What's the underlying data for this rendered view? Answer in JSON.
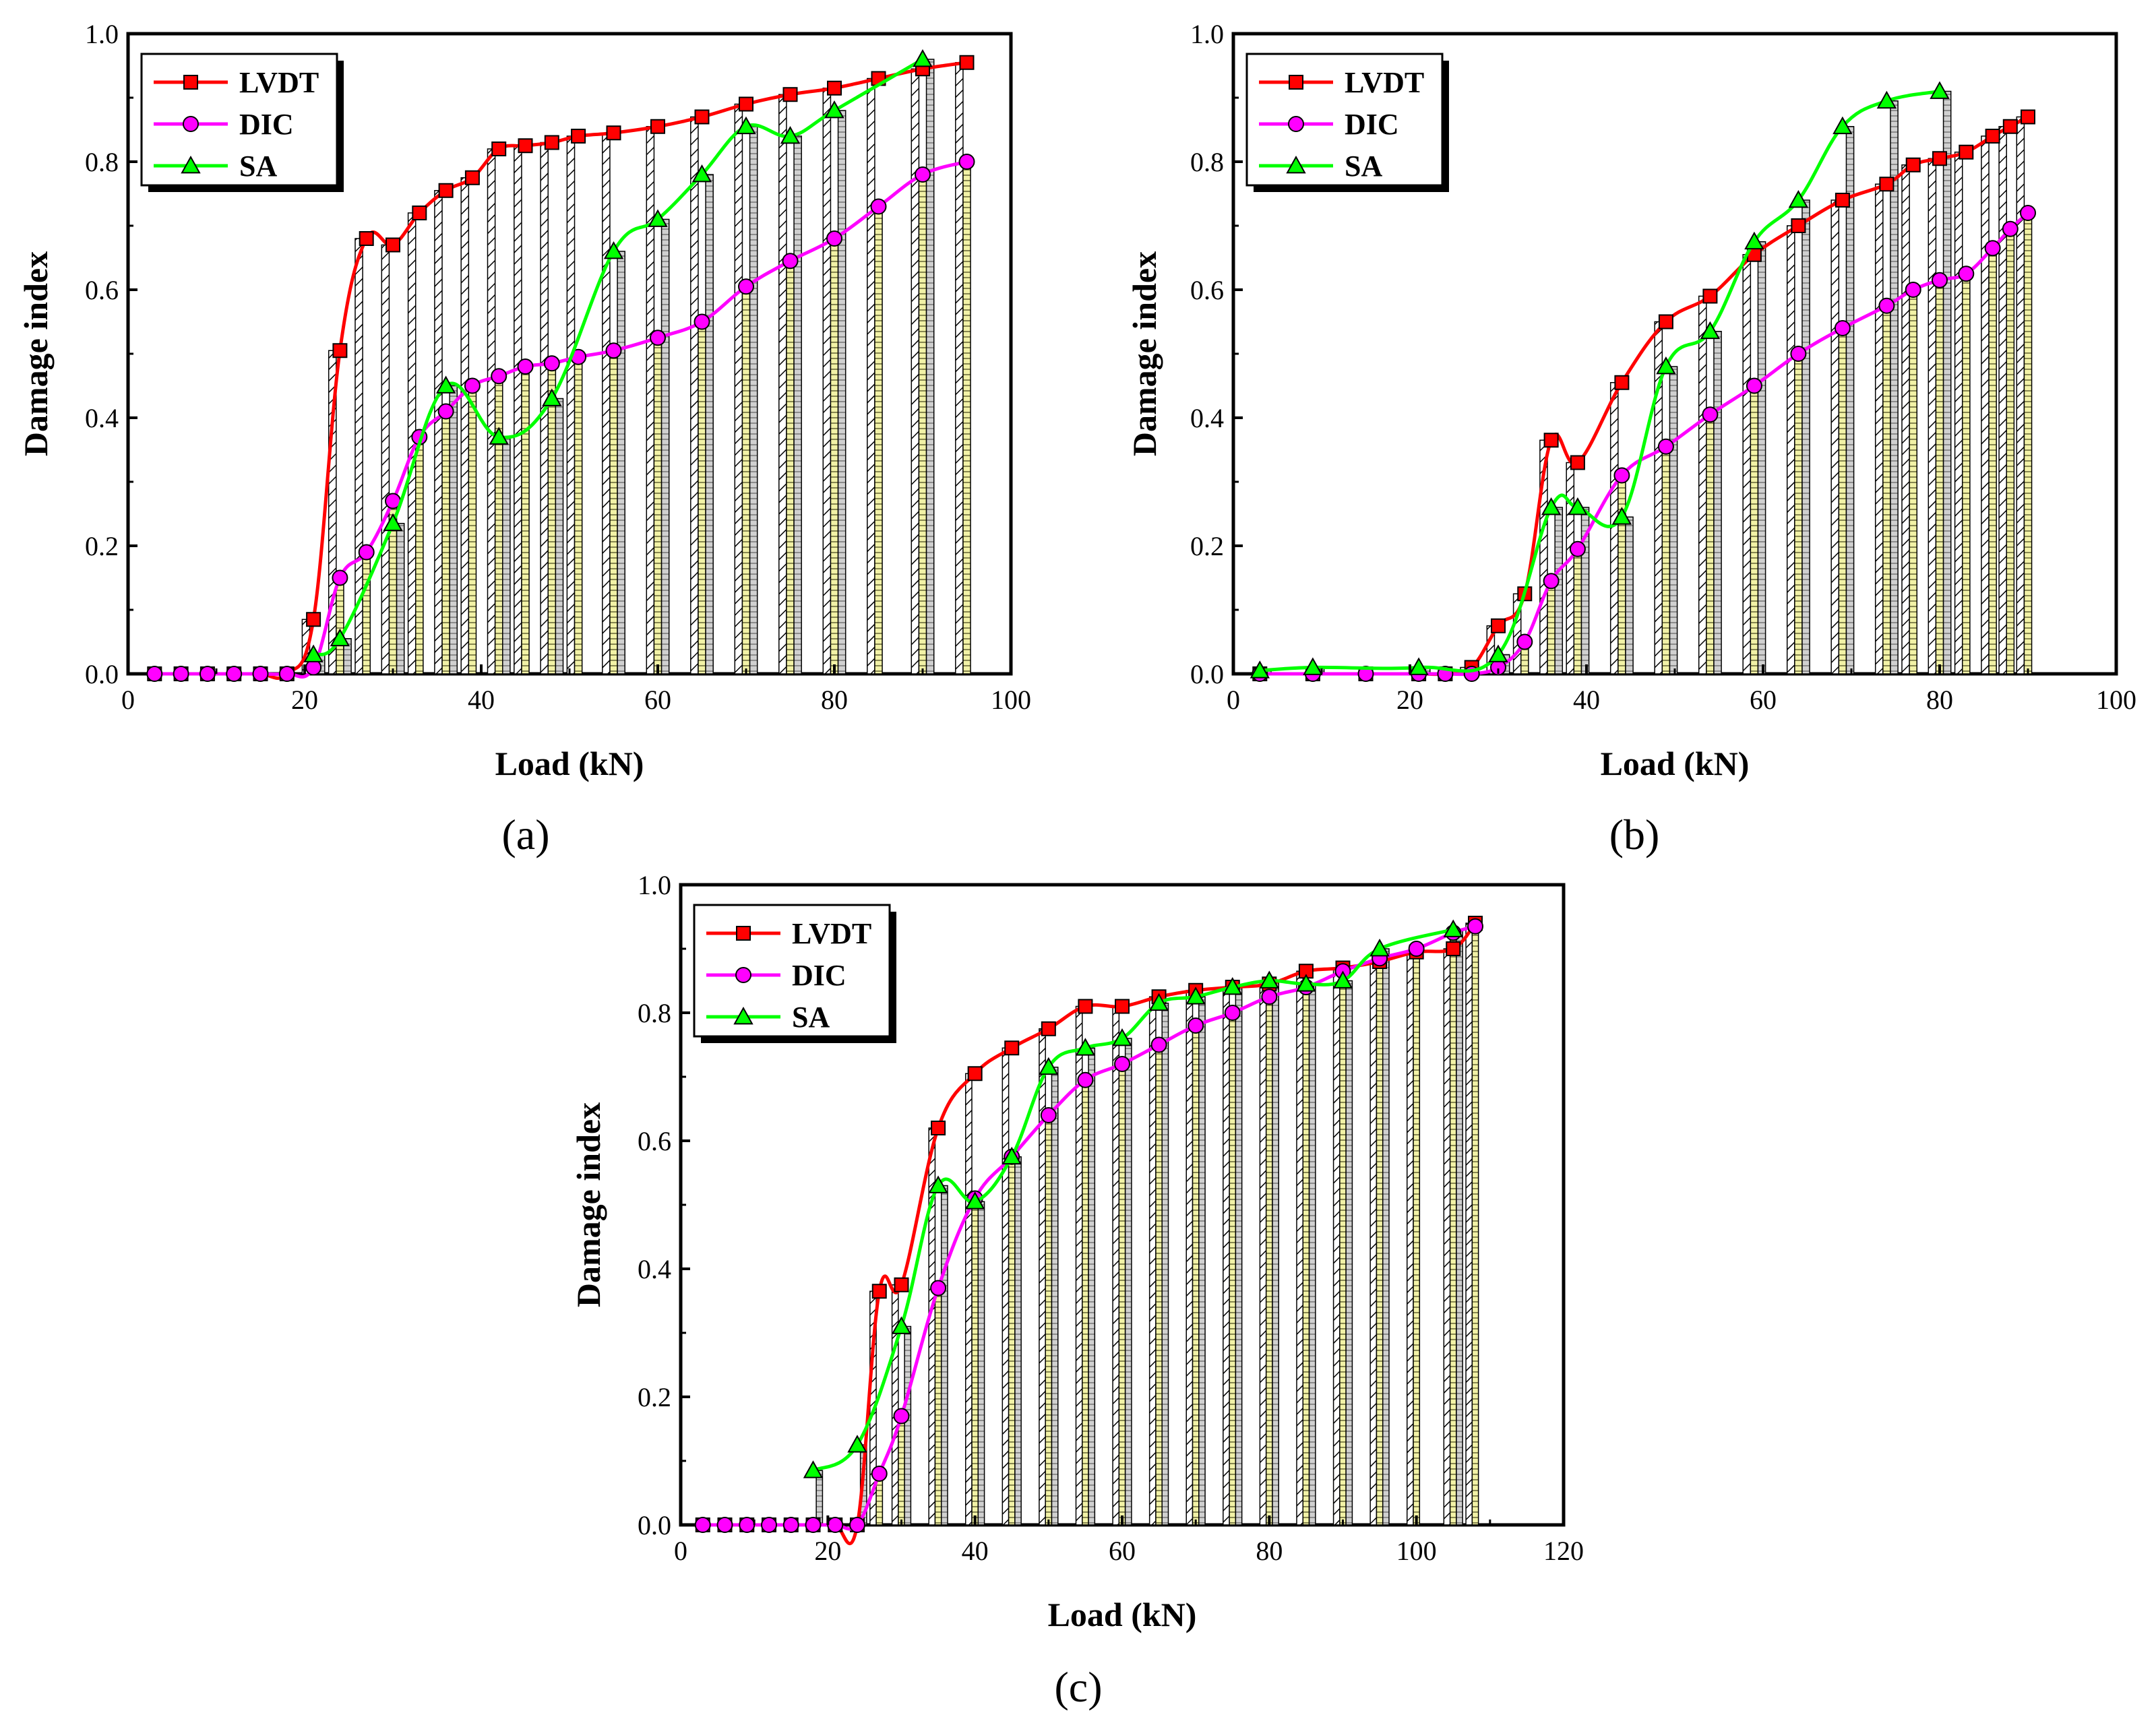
{
  "colors": {
    "lvdt": "#ff0000",
    "dic": "#ff00ff",
    "sa": "#00ff00",
    "bar_lvdt_fill": "#ffffff",
    "bar_dic_fill": "#f2f2a6",
    "bar_sa_fill": "#d0d0d0",
    "axis": "#000000"
  },
  "chart_data": [
    {
      "type": "bar",
      "panel_label": "(a)",
      "xlabel": "Load (kN)",
      "ylabel": "Damage index",
      "xlim": [
        0,
        100
      ],
      "ylim": [
        0.0,
        1.0
      ],
      "xticks": [
        0,
        20,
        40,
        60,
        80,
        100
      ],
      "yticks": [
        0.0,
        0.2,
        0.4,
        0.6,
        0.8,
        1.0
      ],
      "legend_position": "top-left",
      "series": [
        {
          "name": "LVDT",
          "marker": "square",
          "x": [
            3,
            6,
            9,
            12,
            15,
            18,
            21,
            24,
            27,
            30,
            33,
            36,
            39,
            42,
            45,
            48,
            51,
            55,
            60,
            65,
            70,
            75,
            80,
            85,
            90,
            95
          ],
          "values": [
            0,
            0,
            0,
            0,
            0,
            0,
            0.085,
            0.505,
            0.68,
            0.67,
            0.72,
            0.755,
            0.775,
            0.82,
            0.825,
            0.83,
            0.84,
            0.845,
            0.855,
            0.87,
            0.89,
            0.905,
            0.915,
            0.93,
            0.945,
            0.955
          ]
        },
        {
          "name": "DIC",
          "marker": "circle",
          "x": [
            3,
            6,
            9,
            12,
            15,
            18,
            21,
            24,
            27,
            30,
            33,
            36,
            39,
            42,
            45,
            48,
            51,
            55,
            60,
            65,
            70,
            75,
            80,
            85,
            90,
            95
          ],
          "values": [
            0,
            0,
            0,
            0,
            0,
            0,
            0.01,
            0.15,
            0.19,
            0.27,
            0.37,
            0.41,
            0.45,
            0.465,
            0.48,
            0.485,
            0.495,
            0.505,
            0.525,
            0.55,
            0.605,
            0.645,
            0.68,
            0.73,
            0.78,
            0.8
          ]
        },
        {
          "name": "SA",
          "marker": "triangle",
          "x": [
            21,
            24,
            30,
            36,
            42,
            48,
            55,
            60,
            65,
            70,
            75,
            80,
            90
          ],
          "values": [
            0.03,
            0.055,
            0.235,
            0.45,
            0.37,
            0.43,
            0.66,
            0.71,
            0.78,
            0.855,
            0.84,
            0.88,
            0.96
          ]
        }
      ]
    },
    {
      "type": "bar",
      "panel_label": "(b)",
      "xlabel": "Load (kN)",
      "ylabel": "Damage index",
      "xlim": [
        0,
        100
      ],
      "ylim": [
        0.0,
        1.0
      ],
      "xticks": [
        0,
        20,
        40,
        60,
        80,
        100
      ],
      "yticks": [
        0.0,
        0.2,
        0.4,
        0.6,
        0.8,
        1.0
      ],
      "legend_position": "top-left",
      "series": [
        {
          "name": "LVDT",
          "marker": "square",
          "x": [
            3,
            9,
            15,
            21,
            24,
            27,
            30,
            33,
            36,
            39,
            44,
            49,
            54,
            59,
            64,
            69,
            74,
            77,
            80,
            83,
            86,
            88,
            90
          ],
          "values": [
            0,
            0,
            0,
            0,
            0,
            0.01,
            0.075,
            0.125,
            0.365,
            0.33,
            0.455,
            0.55,
            0.59,
            0.655,
            0.7,
            0.74,
            0.765,
            0.795,
            0.805,
            0.815,
            0.84,
            0.855,
            0.87
          ]
        },
        {
          "name": "DIC",
          "marker": "circle",
          "x": [
            3,
            9,
            15,
            21,
            24,
            27,
            30,
            33,
            36,
            39,
            44,
            49,
            54,
            59,
            64,
            69,
            74,
            77,
            80,
            83,
            86,
            88,
            90
          ],
          "values": [
            0,
            0,
            0,
            0,
            0,
            0,
            0.01,
            0.05,
            0.145,
            0.195,
            0.31,
            0.355,
            0.405,
            0.45,
            0.5,
            0.54,
            0.575,
            0.6,
            0.615,
            0.625,
            0.665,
            0.695,
            0.72
          ]
        },
        {
          "name": "SA",
          "marker": "triangle",
          "x": [
            3,
            9,
            21,
            30,
            36,
            39,
            44,
            49,
            54,
            59,
            64,
            69,
            74,
            80
          ],
          "values": [
            0.005,
            0.01,
            0.01,
            0.03,
            0.26,
            0.26,
            0.245,
            0.48,
            0.535,
            0.675,
            0.74,
            0.855,
            0.895,
            0.91
          ]
        }
      ]
    },
    {
      "type": "bar",
      "panel_label": "(c)",
      "xlabel": "Load (kN)",
      "ylabel": "Damage index",
      "xlim": [
        0,
        120
      ],
      "ylim": [
        0.0,
        1.0
      ],
      "xticks": [
        0,
        20,
        40,
        60,
        80,
        100,
        120
      ],
      "yticks": [
        0.0,
        0.2,
        0.4,
        0.6,
        0.8,
        1.0
      ],
      "legend_position": "top-left",
      "series": [
        {
          "name": "LVDT",
          "marker": "square",
          "x": [
            3,
            6,
            9,
            12,
            15,
            18,
            21,
            24,
            27,
            30,
            35,
            40,
            45,
            50,
            55,
            60,
            65,
            70,
            75,
            80,
            85,
            90,
            95,
            100,
            105,
            108
          ],
          "values": [
            0,
            0,
            0,
            0,
            0,
            0,
            0,
            0,
            0.365,
            0.375,
            0.62,
            0.705,
            0.745,
            0.775,
            0.81,
            0.81,
            0.825,
            0.835,
            0.84,
            0.845,
            0.865,
            0.87,
            0.88,
            0.895,
            0.9,
            0.94
          ]
        },
        {
          "name": "DIC",
          "marker": "circle",
          "x": [
            3,
            6,
            9,
            12,
            15,
            18,
            21,
            24,
            27,
            30,
            35,
            40,
            45,
            50,
            55,
            60,
            65,
            70,
            75,
            80,
            85,
            90,
            95,
            100,
            105,
            108
          ],
          "values": [
            0,
            0,
            0,
            0,
            0,
            0,
            0,
            0,
            0.08,
            0.17,
            0.37,
            0.51,
            0.575,
            0.64,
            0.695,
            0.72,
            0.75,
            0.78,
            0.8,
            0.825,
            0.84,
            0.865,
            0.885,
            0.9,
            0.925,
            0.935
          ]
        },
        {
          "name": "SA",
          "marker": "triangle",
          "x": [
            18,
            24,
            30,
            35,
            40,
            45,
            50,
            55,
            60,
            65,
            70,
            75,
            80,
            85,
            90,
            95,
            105
          ],
          "values": [
            0.085,
            0.125,
            0.31,
            0.53,
            0.505,
            0.575,
            0.715,
            0.745,
            0.76,
            0.815,
            0.825,
            0.84,
            0.85,
            0.845,
            0.85,
            0.9,
            0.93
          ]
        }
      ]
    }
  ]
}
